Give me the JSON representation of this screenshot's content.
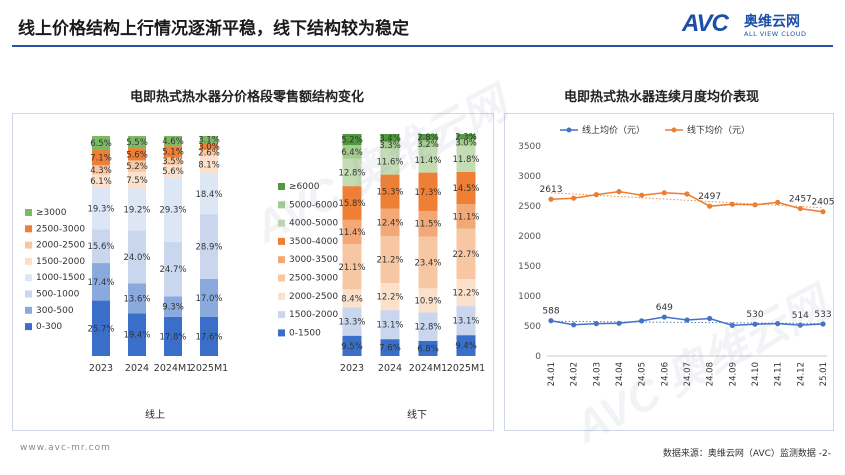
{
  "header": {
    "title": "线上价格结构上行情况逐渐平稳，线下结构较为稳定",
    "logo_mark": "AVC",
    "logo_cn": "奥维云网",
    "logo_en": "ALL VIEW CLOUD"
  },
  "left_title": "电即热式热水器分价格段零售额结构变化",
  "right_title": "电即热式热水器连续月度均价表现",
  "online_label": "线上",
  "offline_label": "线下",
  "footer": {
    "url": "www.avc-mr.com",
    "source": "数据来源：奥维云网（AVC）监测数据 -2-"
  },
  "watermark": "AVC 奥维云网",
  "chart_data": [
    {
      "type": "bar",
      "stacked": true,
      "percent": true,
      "name": "线上",
      "categories": [
        "2023",
        "2024",
        "2024M1",
        "2025M1"
      ],
      "series": [
        {
          "name": "0-300",
          "color": "#3a6fc9",
          "values": [
            25.7,
            19.4,
            17.8,
            17.6
          ]
        },
        {
          "name": "300-500",
          "color": "#8aa9dd",
          "values": [
            17.4,
            13.6,
            9.3,
            17.0
          ]
        },
        {
          "name": "500-1000",
          "color": "#c9d6ee",
          "values": [
            15.6,
            24.0,
            24.7,
            28.9
          ]
        },
        {
          "name": "1000-1500",
          "color": "#dde6f5",
          "values": [
            19.3,
            19.2,
            29.3,
            18.4
          ]
        },
        {
          "name": "1500-2000",
          "color": "#fbe1cc",
          "values": [
            6.1,
            7.5,
            5.6,
            8.1
          ]
        },
        {
          "name": "2000-2500",
          "color": "#f7c7a3",
          "values": [
            4.3,
            5.2,
            3.5,
            2.6
          ]
        },
        {
          "name": "2500-3000",
          "color": "#ee7f34",
          "values": [
            7.1,
            5.6,
            5.1,
            3.0
          ]
        },
        {
          "name": "≥3000",
          "color": "#7cb965",
          "values": [
            6.5,
            5.5,
            4.6,
            3.1
          ]
        }
      ],
      "legend_position": "left"
    },
    {
      "type": "bar",
      "stacked": true,
      "percent": true,
      "name": "线下",
      "categories": [
        "2023",
        "2024",
        "2024M1",
        "2025M1"
      ],
      "series": [
        {
          "name": "0-1500",
          "color": "#3a6fc9",
          "values": [
            9.5,
            7.6,
            6.8,
            9.4
          ]
        },
        {
          "name": "1500-2000",
          "color": "#c9d6ee",
          "values": [
            13.3,
            13.1,
            12.8,
            13.1
          ]
        },
        {
          "name": "2000-2500",
          "color": "#fbe1cc",
          "values": [
            8.4,
            12.2,
            10.9,
            12.2
          ]
        },
        {
          "name": "2500-3000",
          "color": "#f7c7a3",
          "values": [
            21.1,
            21.2,
            23.4,
            22.7
          ]
        },
        {
          "name": "3000-3500",
          "color": "#f2a877",
          "values": [
            11.4,
            12.4,
            11.5,
            11.1
          ]
        },
        {
          "name": "3500-4000",
          "color": "#ee7f34",
          "values": [
            15.8,
            15.3,
            17.3,
            14.5
          ]
        },
        {
          "name": "4000-5000",
          "color": "#c3dcb4",
          "values": [
            12.8,
            11.6,
            11.4,
            11.8
          ]
        },
        {
          "name": "5000-6000",
          "color": "#a3cc8e",
          "values": [
            6.4,
            3.3,
            3.2,
            3.0
          ]
        },
        {
          "name": "≥6000",
          "color": "#4f9a3d",
          "values": [
            5.2,
            3.4,
            2.8,
            2.3
          ]
        }
      ],
      "legend_position": "left"
    },
    {
      "type": "line",
      "x": [
        "24.01",
        "24.02",
        "24.03",
        "24.04",
        "24.05",
        "24.06",
        "24.07",
        "24.08",
        "24.09",
        "24.10",
        "24.11",
        "24.12",
        "25.01"
      ],
      "ylim": [
        0,
        3500
      ],
      "yticks": [
        0,
        500,
        1000,
        1500,
        2000,
        2500,
        3000,
        3500
      ],
      "series": [
        {
          "name": "线上均价（元）",
          "color": "#4472c4",
          "values": [
            588,
            520,
            540,
            545,
            585,
            649,
            600,
            625,
            510,
            530,
            540,
            514,
            533
          ],
          "labels": {
            "0": "588",
            "5": "649",
            "9": "530",
            "11": "514",
            "12": "533"
          }
        },
        {
          "name": "线下均价（元）",
          "color": "#ed7d31",
          "values": [
            2613,
            2630,
            2690,
            2740,
            2680,
            2720,
            2700,
            2497,
            2530,
            2520,
            2560,
            2457,
            2405
          ],
          "labels": {
            "0": "2613",
            "7": "2497",
            "11": "2457",
            "12": "2405"
          }
        }
      ],
      "legend_position": "top",
      "grid": false,
      "trendline": true
    }
  ]
}
